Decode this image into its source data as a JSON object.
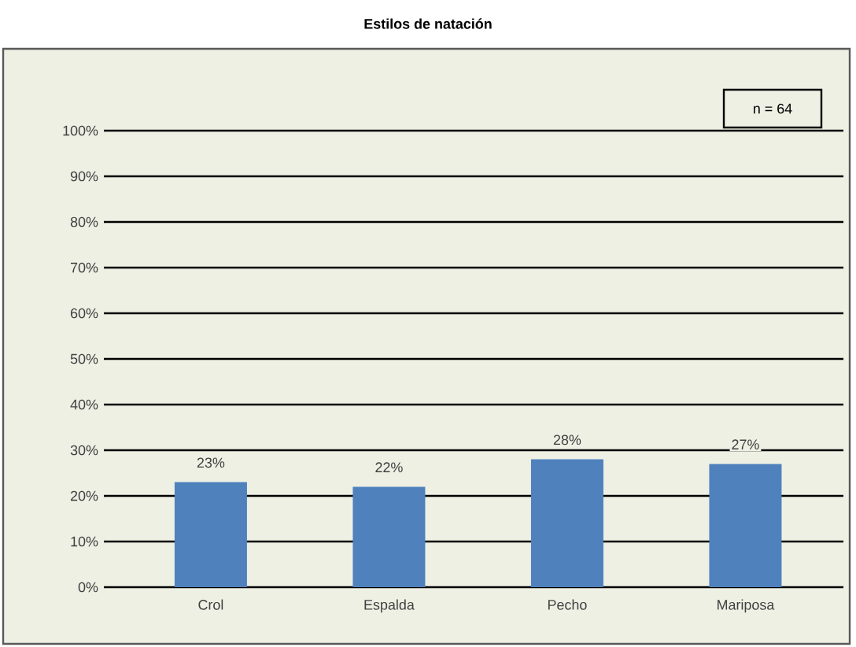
{
  "chart_data": {
    "type": "bar",
    "title": "Estilos de natación",
    "categories": [
      "Crol",
      "Espalda",
      "Pecho",
      "Mariposa"
    ],
    "values": [
      23,
      22,
      28,
      27
    ],
    "color": "#4f81bd",
    "value_labels": [
      "23%",
      "22%",
      "28%",
      "27%"
    ],
    "ylim": [
      0,
      100
    ],
    "yticks": [
      {
        "value": 0,
        "label": "0%"
      },
      {
        "value": 10,
        "label": "10%"
      },
      {
        "value": 20,
        "label": "20%"
      },
      {
        "value": 30,
        "label": "30%"
      },
      {
        "value": 40,
        "label": "40%"
      },
      {
        "value": 50,
        "label": "50%"
      },
      {
        "value": 60,
        "label": "60%"
      },
      {
        "value": 70,
        "label": "70%"
      },
      {
        "value": 80,
        "label": "80%"
      },
      {
        "value": 90,
        "label": "90%"
      },
      {
        "value": 100,
        "label": "100%"
      }
    ],
    "grid": "y",
    "annotations": [
      "n = 64"
    ]
  }
}
